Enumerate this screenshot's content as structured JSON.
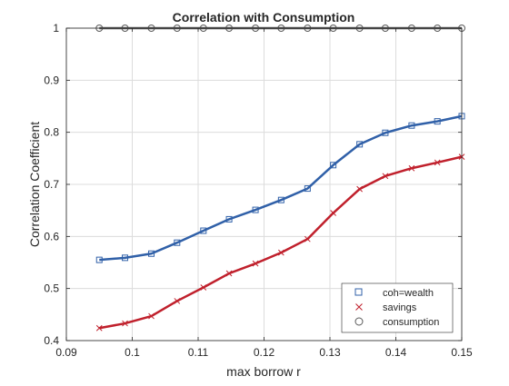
{
  "chart_data": {
    "type": "line",
    "title": "Correlation with Consumption",
    "xlabel": "max borrow r",
    "ylabel": "Correlation Coefficient",
    "xlim": [
      0.09,
      0.15
    ],
    "ylim": [
      0.4,
      1.0
    ],
    "xticks": [
      0.09,
      0.1,
      0.11,
      0.12,
      0.13,
      0.14,
      0.15
    ],
    "xtick_labels": [
      "0.09",
      "0.1",
      "0.11",
      "0.12",
      "0.13",
      "0.14",
      "0.15"
    ],
    "yticks": [
      0.4,
      0.5,
      0.6,
      0.7,
      0.8,
      0.9,
      1.0
    ],
    "ytick_labels": [
      "0.4",
      "0.5",
      "0.6",
      "0.7",
      "0.8",
      "0.9",
      "1"
    ],
    "grid": true,
    "legend_position": "bottom-right",
    "x": [
      0.095,
      0.0989,
      0.1029,
      0.1068,
      0.1108,
      0.1147,
      0.1187,
      0.1226,
      0.1266,
      0.1305,
      0.1345,
      0.1384,
      0.1424,
      0.1463,
      0.15
    ],
    "series": [
      {
        "name": "coh=wealth",
        "marker": "square",
        "color": "#3060A8",
        "values": [
          0.555,
          0.559,
          0.567,
          0.588,
          0.611,
          0.633,
          0.651,
          0.67,
          0.692,
          0.737,
          0.777,
          0.799,
          0.813,
          0.821,
          0.831
        ]
      },
      {
        "name": "savings",
        "marker": "x",
        "color": "#C0202C",
        "values": [
          0.424,
          0.433,
          0.447,
          0.476,
          0.502,
          0.529,
          0.548,
          0.569,
          0.595,
          0.645,
          0.691,
          0.716,
          0.731,
          0.742,
          0.753
        ]
      },
      {
        "name": "consumption",
        "marker": "circle",
        "color": "#595959",
        "values": [
          1,
          1,
          1,
          1,
          1,
          1,
          1,
          1,
          1,
          1,
          1,
          1,
          1,
          1,
          1
        ]
      }
    ]
  }
}
